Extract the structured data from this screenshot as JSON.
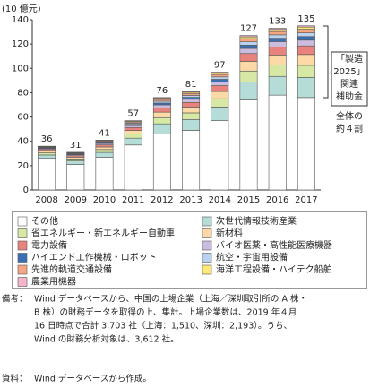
{
  "chart_data": {
    "type": "stacked_bar",
    "y_label": "(10 億元)",
    "categories": [
      "2008",
      "2009",
      "2010",
      "2011",
      "2012",
      "2013",
      "2014",
      "2015",
      "2016",
      "2017"
    ],
    "ylim": [
      0,
      140
    ],
    "yticks": [
      0,
      20,
      40,
      60,
      80,
      100,
      120,
      140
    ],
    "grid": false,
    "totals": [
      36,
      31,
      41,
      57,
      76,
      81,
      97,
      127,
      133,
      135
    ],
    "series": [
      {
        "name": "その他",
        "color": "#ffffff",
        "values": [
          26,
          21,
          27,
          37,
          46,
          49,
          57,
          74,
          78,
          76
        ]
      },
      {
        "name": "次世代情報技術産業",
        "color": "#b5dcd6",
        "values": [
          2.8,
          2.8,
          3.9,
          5.6,
          8.4,
          9,
          11.2,
          14.8,
          15.4,
          16.5
        ]
      },
      {
        "name": "省エネルギー・新エネルギー自動車",
        "color": "#d6e8a4",
        "values": [
          1.7,
          1.7,
          2.4,
          3.4,
          5.1,
          5.4,
          6.8,
          9,
          9.4,
          10
        ]
      },
      {
        "name": "新材料",
        "color": "#fcd9a6",
        "values": [
          1.5,
          1.5,
          2.1,
          3,
          4.5,
          4.8,
          6,
          8,
          8.2,
          8.9
        ]
      },
      {
        "name": "電力設備",
        "color": "#e8827c",
        "values": [
          1.2,
          1.2,
          1.7,
          2.4,
          3.6,
          3.8,
          4.8,
          6.4,
          6.6,
          7.1
        ]
      },
      {
        "name": "バイオ医薬・高性能医療機器",
        "color": "#cbbddf",
        "values": [
          0.8,
          0.8,
          1.1,
          1.6,
          2.4,
          2.6,
          3.2,
          4.2,
          4.4,
          4.7
        ]
      },
      {
        "name": "ハイエンド工作機械・ロボット",
        "color": "#3b6fb4",
        "values": [
          0.5,
          0.5,
          0.7,
          1,
          1.5,
          1.6,
          2,
          2.7,
          2.8,
          3
        ]
      },
      {
        "name": "航空・宇宙用設備",
        "color": "#b9d3ee",
        "values": [
          0.5,
          0.5,
          0.7,
          1,
          1.5,
          1.6,
          2,
          2.7,
          2.8,
          3
        ]
      },
      {
        "name": "先進的軌道交通設備",
        "color": "#f4a582",
        "values": [
          0.5,
          0.5,
          0.7,
          1,
          1.5,
          1.6,
          2,
          2.7,
          2.8,
          3
        ]
      },
      {
        "name": "海洋工程設備・ハイテク船舶",
        "color": "#fde97a",
        "values": [
          0.3,
          0.3,
          0.4,
          0.6,
          0.9,
          1,
          1.2,
          1.5,
          1.6,
          1.8
        ]
      },
      {
        "name": "農業用機器",
        "color": "#f6b5c8",
        "values": [
          0.2,
          0.2,
          0.3,
          0.4,
          0.6,
          0.6,
          0.8,
          1,
          1,
          1
        ]
      }
    ],
    "annotation_box": [
      "「製造",
      "2025」",
      "関連",
      "補助金"
    ],
    "annotation_text": [
      "全体の",
      "約４割"
    ]
  },
  "notes": {
    "label": "備考：",
    "lines": [
      "Wind データベースから、中国の上場企業（上海／深圳取引所の A 株・",
      "B 株）の財務データを取得の上、集計。上場企業数は、2019 年４月",
      "16 日時点で合計 3,703 社（上海：1,510、深圳：2,193）。うち、",
      "Wind の財務分析対象は、3,612 社。"
    ]
  },
  "source": {
    "label": "資料：",
    "text": "Wind データベースから作成。"
  }
}
